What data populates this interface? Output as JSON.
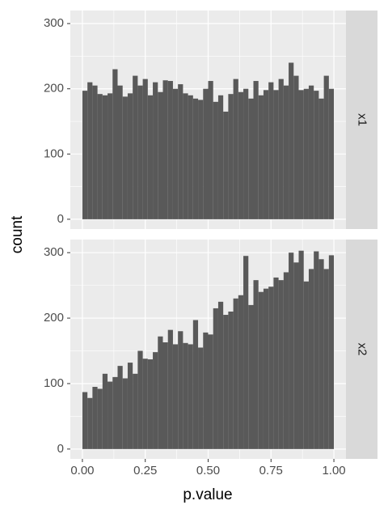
{
  "chart_data": {
    "type": "histogram",
    "x_label": "p.value",
    "y_label": "count",
    "color": "#595959",
    "bins": [
      0,
      0.02,
      0.04,
      0.06,
      0.08,
      0.1,
      0.12,
      0.14,
      0.16,
      0.18,
      0.2,
      0.22,
      0.24,
      0.26,
      0.28,
      0.3,
      0.32,
      0.34,
      0.36,
      0.38,
      0.4,
      0.42,
      0.44,
      0.46,
      0.48,
      0.5,
      0.52,
      0.54,
      0.56,
      0.58,
      0.6,
      0.62,
      0.64,
      0.66,
      0.68,
      0.7,
      0.72,
      0.74,
      0.76,
      0.78,
      0.8,
      0.82,
      0.84,
      0.86,
      0.88,
      0.9,
      0.92,
      0.94,
      0.96,
      0.98,
      1
    ],
    "facets": [
      {
        "label": "x1",
        "values": [
          197,
          210,
          205,
          192,
          190,
          193,
          230,
          205,
          188,
          193,
          220,
          205,
          215,
          190,
          210,
          195,
          213,
          212,
          200,
          207,
          193,
          190,
          185,
          183,
          200,
          212,
          180,
          190,
          165,
          192,
          215,
          195,
          200,
          185,
          212,
          190,
          198,
          210,
          198,
          215,
          205,
          240,
          220,
          198,
          200,
          205,
          197,
          185,
          220,
          200
        ]
      },
      {
        "label": "x2",
        "values": [
          87,
          78,
          95,
          92,
          115,
          103,
          110,
          127,
          108,
          132,
          115,
          150,
          138,
          137,
          148,
          172,
          163,
          182,
          160,
          180,
          162,
          160,
          197,
          155,
          178,
          175,
          215,
          225,
          205,
          210,
          230,
          235,
          295,
          220,
          258,
          240,
          245,
          248,
          262,
          258,
          270,
          300,
          285,
          303,
          256,
          275,
          302,
          290,
          275,
          296
        ]
      }
    ],
    "xlim": [
      -0.048,
      1.048
    ],
    "ylim": [
      -15,
      320
    ],
    "xticks": [
      {
        "value": 0,
        "label": "0.00"
      },
      {
        "value": 0.25,
        "label": "0.25"
      },
      {
        "value": 0.5,
        "label": "0.50"
      },
      {
        "value": 0.75,
        "label": "0.75"
      },
      {
        "value": 1,
        "label": "1.00"
      }
    ],
    "yticks": [
      0,
      100,
      200,
      300
    ],
    "grid": true
  }
}
